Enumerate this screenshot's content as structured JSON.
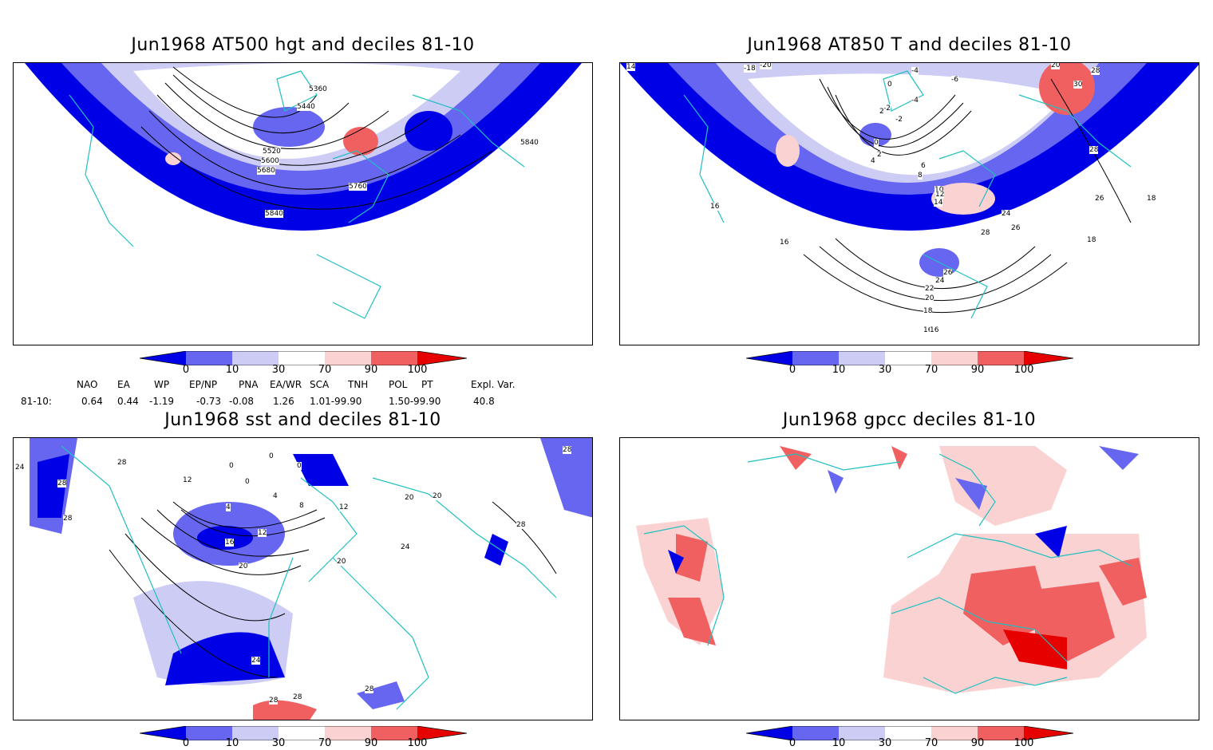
{
  "panels": {
    "p1": {
      "title": "Jun1968 AT500 hgt and deciles 81-10",
      "labels": [
        "5360",
        "5440",
        "5520",
        "5600",
        "5680",
        "5760",
        "5840",
        "5840"
      ]
    },
    "p2": {
      "title": "Jun1968 AT850 T and deciles 81-10",
      "labels": [
        "14",
        "-18",
        "-20",
        "-4",
        "-6",
        "0",
        "-2",
        "2",
        "-4",
        "-2",
        "0",
        "2",
        "4",
        "6",
        "8",
        "10",
        "12",
        "14",
        "16",
        "16",
        "16",
        "24",
        "26",
        "28",
        "26",
        "24",
        "22",
        "20",
        "18",
        "16",
        "20",
        "28",
        "30",
        "28",
        "26",
        "18",
        "18"
      ]
    },
    "p3": {
      "title": "Jun1968 sst and deciles 81-10",
      "labels": [
        "28",
        "24",
        "28",
        "28",
        "12",
        "0",
        "0",
        "0",
        "0",
        "4",
        "4",
        "8",
        "12",
        "16",
        "12",
        "20",
        "20",
        "20",
        "24",
        "28",
        "28",
        "24",
        "28",
        "28",
        "28",
        "20"
      ]
    },
    "p4": {
      "title": "Jun1968 gpcc deciles 81-10",
      "labels": []
    }
  },
  "colorbar": {
    "ticks": [
      "0",
      "10",
      "30",
      "70",
      "90",
      "100"
    ],
    "colors": [
      "#0000e6",
      "#6666f0",
      "#ccccf5",
      "#ffffff",
      "#fad2d2",
      "#f06060",
      "#e60000"
    ]
  },
  "indices": {
    "headers": [
      "NAO",
      "EA",
      "WP",
      "EP/NP",
      "PNA",
      "EA/WR",
      "SCA",
      "TNH",
      "POL",
      "PT",
      "Expl. Var."
    ],
    "row_label": "81-10:",
    "values": [
      "0.64",
      "0.44",
      "-1.19",
      "-0.73",
      "-0.08",
      "1.26",
      "1.01-99.90",
      "1.50-99.90",
      "40.8"
    ]
  }
}
